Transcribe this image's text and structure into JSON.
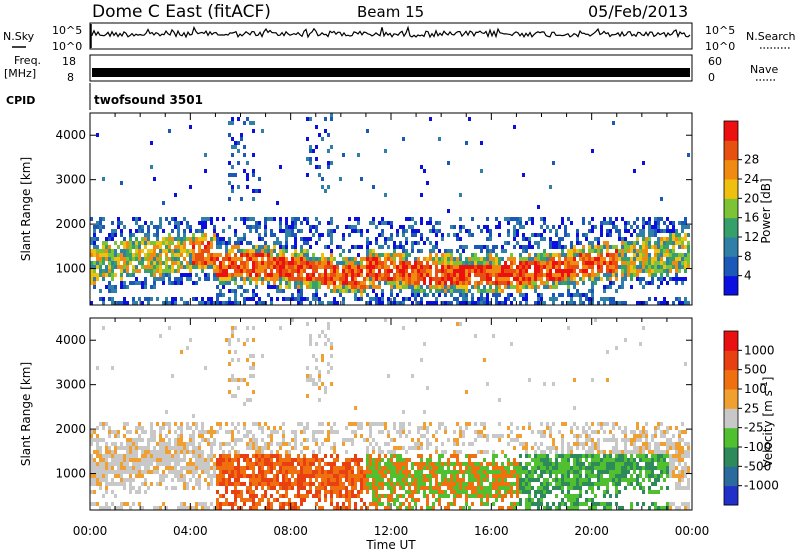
{
  "header": {
    "station": "Dome C East (fitACF)",
    "beam": "Beam 15",
    "date": "05/Feb/2013"
  },
  "status_panels": {
    "nsky_label": "N.Sky",
    "nsky_ticks": [
      "10^5",
      "10^0"
    ],
    "nsearch_label": "N.Search",
    "nsearch_ticks": [
      "10^5",
      "10^0"
    ],
    "freq_label_1": "Freq.",
    "freq_label_2": "[MHz]",
    "freq_ticks": [
      "18",
      "8"
    ],
    "nave_label": "Nave",
    "nave_ticks": [
      "60",
      "0"
    ],
    "cpid_label": "CPID",
    "cpid_value": "twofsound 3501"
  },
  "chart_data": [
    {
      "type": "heatmap",
      "ylabel": "Slant Range [km]",
      "yticks": [
        "1000",
        "2000",
        "3000",
        "4000"
      ],
      "ylim": [
        180,
        4500
      ],
      "xlim": [
        0,
        24
      ],
      "colorbar": {
        "label": "Power [dB]",
        "ticks": [
          "4",
          "8",
          "12",
          "16",
          "20",
          "24",
          "28"
        ],
        "colors": [
          "#0b10e0",
          "#1c58b8",
          "#2f7fa8",
          "#36a06a",
          "#7cc436",
          "#f0c010",
          "#f08a10",
          "#e85010",
          "#ec1010"
        ]
      },
      "echo_bands_km": [
        {
          "start_hr": 0.0,
          "end_hr": 24.0,
          "center": 1200,
          "width": 700
        },
        {
          "start_hr": 4.5,
          "end_hr": 22.0,
          "center": 1000,
          "width": 800
        }
      ]
    },
    {
      "type": "heatmap",
      "ylabel": "Slant Range [km]",
      "yticks": [
        "1000",
        "2000",
        "3000",
        "4000"
      ],
      "ylim": [
        180,
        4500
      ],
      "xlim": [
        0,
        24
      ],
      "xticks": [
        "00:00",
        "04:00",
        "08:00",
        "12:00",
        "16:00",
        "20:00",
        "00:00"
      ],
      "xlabel": "Time UT",
      "colorbar": {
        "label": "Velocity [m s^-1]",
        "label_main": "Velocity [m s",
        "label_sup": "-1",
        "label_end": "]",
        "ticks": [
          "1000",
          "500",
          "100",
          "25",
          "-25",
          "-100",
          "-500",
          "-1000"
        ],
        "colors": [
          "#2030c8",
          "#2a6a9c",
          "#2e8a5a",
          "#50c030",
          "#c8c8c8",
          "#f0a030",
          "#f07010",
          "#e84010",
          "#e81010"
        ]
      }
    }
  ]
}
